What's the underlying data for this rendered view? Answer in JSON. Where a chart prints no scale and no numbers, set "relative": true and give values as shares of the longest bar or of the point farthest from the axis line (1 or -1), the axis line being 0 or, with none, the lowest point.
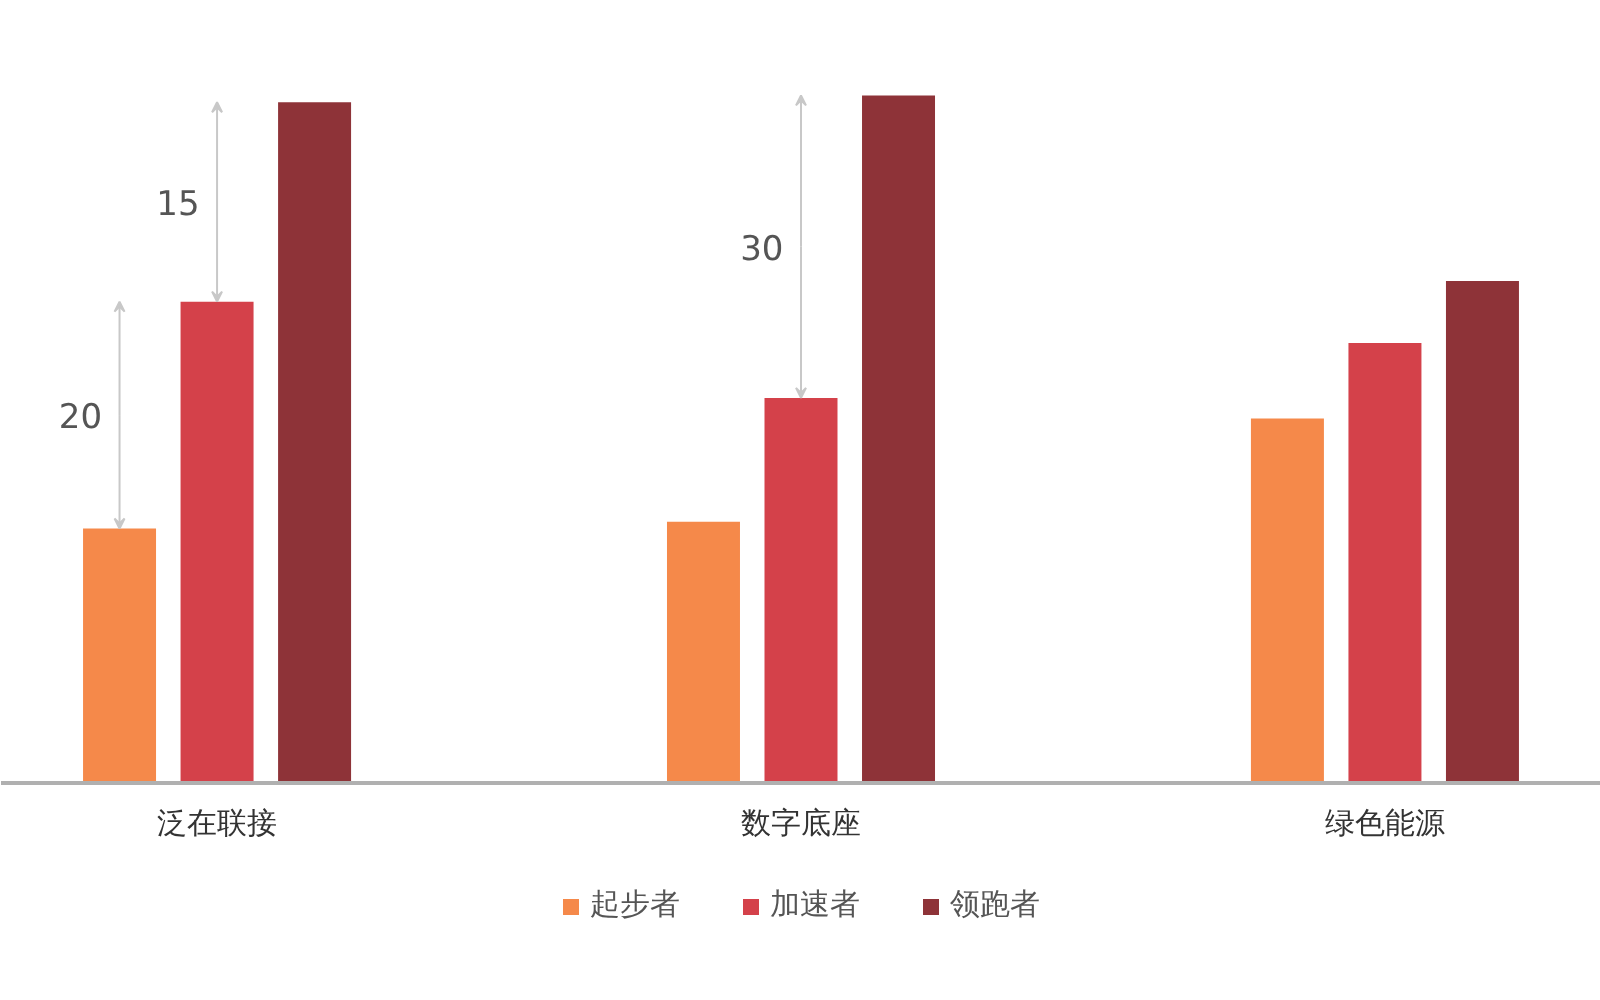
{
  "chart_data": {
    "type": "bar",
    "relative": true,
    "categories": [
      "泛在联接",
      "数字底座",
      "绿色能源"
    ],
    "series": [
      {
        "name": "起步者",
        "color": "#f5894a",
        "values": [
          0.37,
          0.38,
          0.53
        ]
      },
      {
        "name": "加速者",
        "color": "#d4414a",
        "values": [
          0.7,
          0.56,
          0.64
        ]
      },
      {
        "name": "领跑者",
        "color": "#8e3338",
        "values": [
          0.99,
          1.0,
          0.73
        ]
      }
    ],
    "annotations": [
      "20",
      "15",
      "30"
    ],
    "legend": "bottom",
    "grid": false
  }
}
